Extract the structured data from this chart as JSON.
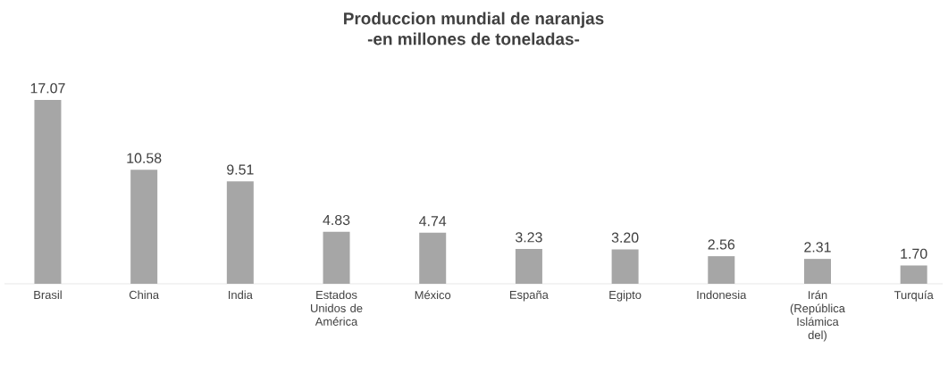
{
  "chart_data": {
    "type": "bar",
    "title": "Produccion mundial de naranjas",
    "subtitle": "-en millones de toneladas-",
    "categories": [
      "Brasil",
      "China",
      "India",
      "Estados Unidos de América",
      "México",
      "España",
      "Egipto",
      "Indonesia",
      "Irán (República Islámica del)",
      "Turquía"
    ],
    "values": [
      17.07,
      10.58,
      9.51,
      4.83,
      4.74,
      3.23,
      3.2,
      2.56,
      2.31,
      1.7
    ],
    "value_labels": [
      "17.07",
      "10.58",
      "9.51",
      "4.83",
      "4.74",
      "3.23",
      "3.20",
      "2.56",
      "2.31",
      "1.70"
    ],
    "color": "#a6a6a6"
  }
}
